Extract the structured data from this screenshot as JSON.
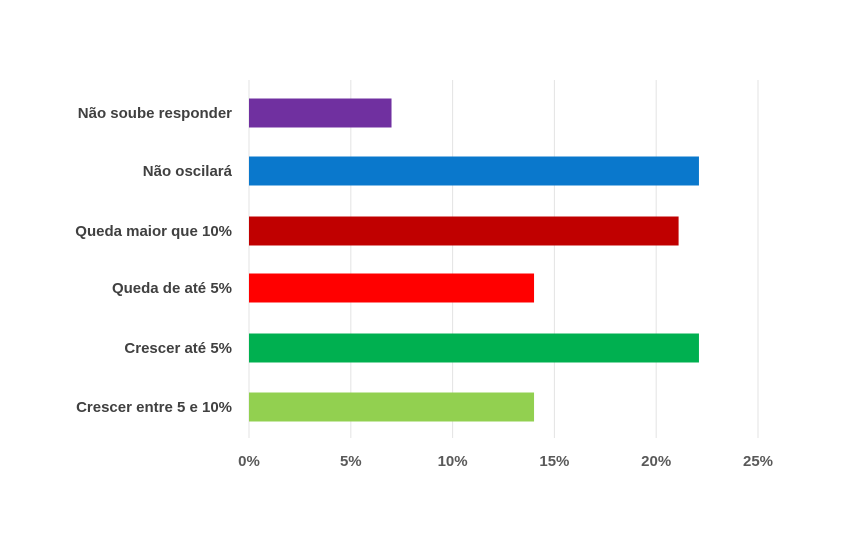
{
  "chart_data": {
    "type": "bar",
    "orientation": "horizontal",
    "categories": [
      "Não soube responder",
      "Não oscilará",
      "Queda maior que 10%",
      "Queda de até 5%",
      "Crescer até 5%",
      "Crescer entre 5 e 10%"
    ],
    "values": [
      7,
      22.1,
      21.1,
      14,
      22.1,
      14
    ],
    "colors": [
      "#7030a0",
      "#0a78cc",
      "#c00000",
      "#ff0000",
      "#00b050",
      "#92d050"
    ],
    "xlim": [
      0,
      25
    ],
    "ticks": [
      0,
      5,
      10,
      15,
      20,
      25
    ],
    "tick_labels": [
      "0%",
      "5%",
      "10%",
      "15%",
      "20%",
      "25%"
    ],
    "grid": true,
    "legend": "none",
    "title": "",
    "xlabel": "",
    "ylabel": ""
  }
}
